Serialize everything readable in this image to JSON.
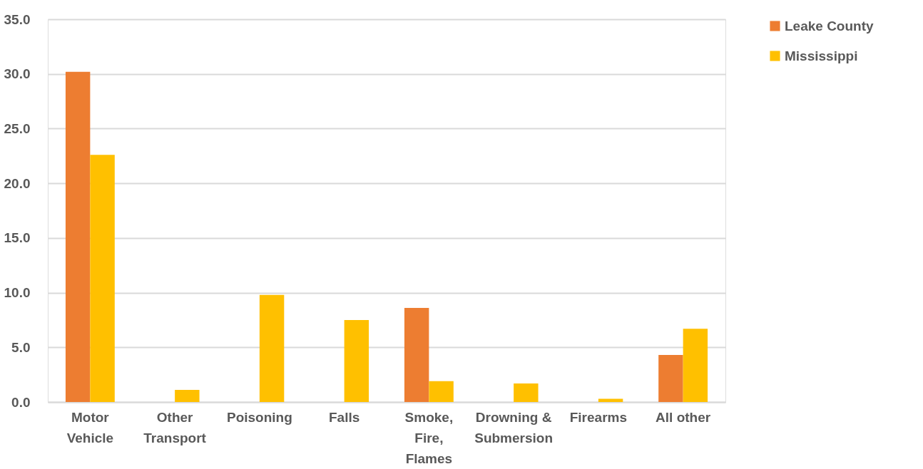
{
  "chart_data": {
    "type": "bar",
    "categories": [
      "Motor Vehicle",
      "Other Transport",
      "Poisoning",
      "Falls",
      "Smoke, Fire, Flames",
      "Drowning & Submersion",
      "Firearms",
      "All other"
    ],
    "series": [
      {
        "name": "Leake County",
        "color": "#ed7d31",
        "values": [
          30.2,
          null,
          null,
          null,
          8.6,
          null,
          null,
          4.3
        ]
      },
      {
        "name": "Mississippi",
        "color": "#ffc000",
        "values": [
          22.6,
          1.1,
          9.8,
          7.5,
          1.9,
          1.7,
          0.3,
          6.7
        ]
      }
    ],
    "ylim": [
      0,
      35
    ],
    "yticks": [
      {
        "value": 0,
        "label": "0.0"
      },
      {
        "value": 5,
        "label": "5.0"
      },
      {
        "value": 10,
        "label": "10.0"
      },
      {
        "value": 15,
        "label": "15.0"
      },
      {
        "value": 20,
        "label": "20.0"
      },
      {
        "value": 25,
        "label": "25.0"
      },
      {
        "value": 30,
        "label": "30.0"
      },
      {
        "value": 35,
        "label": "35.0"
      }
    ],
    "grid": "y",
    "legend": "right"
  }
}
